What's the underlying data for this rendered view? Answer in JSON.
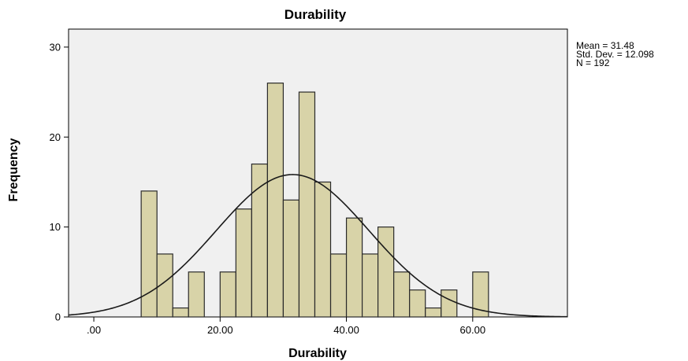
{
  "chart_data": {
    "type": "bar",
    "title": "Durability",
    "xlabel": "Durability",
    "ylabel": "Frequency",
    "xlim": [
      -4,
      75
    ],
    "ylim": [
      0,
      32
    ],
    "bin_width": 2.5,
    "bins": [
      {
        "x_start": 7.5,
        "count": 14
      },
      {
        "x_start": 10.0,
        "count": 7
      },
      {
        "x_start": 12.5,
        "count": 1
      },
      {
        "x_start": 15.0,
        "count": 5
      },
      {
        "x_start": 17.5,
        "count": 0
      },
      {
        "x_start": 20.0,
        "count": 5
      },
      {
        "x_start": 22.5,
        "count": 12
      },
      {
        "x_start": 25.0,
        "count": 17
      },
      {
        "x_start": 27.5,
        "count": 26
      },
      {
        "x_start": 30.0,
        "count": 13
      },
      {
        "x_start": 32.5,
        "count": 25
      },
      {
        "x_start": 35.0,
        "count": 15
      },
      {
        "x_start": 37.5,
        "count": 7
      },
      {
        "x_start": 40.0,
        "count": 11
      },
      {
        "x_start": 42.5,
        "count": 7
      },
      {
        "x_start": 45.0,
        "count": 10
      },
      {
        "x_start": 47.5,
        "count": 5
      },
      {
        "x_start": 50.0,
        "count": 3
      },
      {
        "x_start": 52.5,
        "count": 1
      },
      {
        "x_start": 55.0,
        "count": 3
      },
      {
        "x_start": 57.5,
        "count": 0
      },
      {
        "x_start": 60.0,
        "count": 5
      }
    ],
    "x_ticks": [
      {
        "value": 0,
        "label": ".00"
      },
      {
        "value": 20,
        "label": "20.00"
      },
      {
        "value": 40,
        "label": "40.00"
      },
      {
        "value": 60,
        "label": "60.00"
      }
    ],
    "y_ticks": [
      {
        "value": 0,
        "label": "0"
      },
      {
        "value": 10,
        "label": "10"
      },
      {
        "value": 20,
        "label": "20"
      },
      {
        "value": 30,
        "label": "30"
      }
    ],
    "normal_curve": {
      "mean": 31.48,
      "std_dev": 12.098,
      "n": 192
    },
    "stats_text": [
      "Mean = 31.48",
      "Std. Dev. = 12.098",
      "N = 192"
    ],
    "colors": {
      "bar_fill": "#d8d3a8",
      "bar_stroke": "#2a2a2a",
      "plot_background": "#f0f0f0",
      "curve": "#1a1a1a"
    },
    "grid": false
  }
}
